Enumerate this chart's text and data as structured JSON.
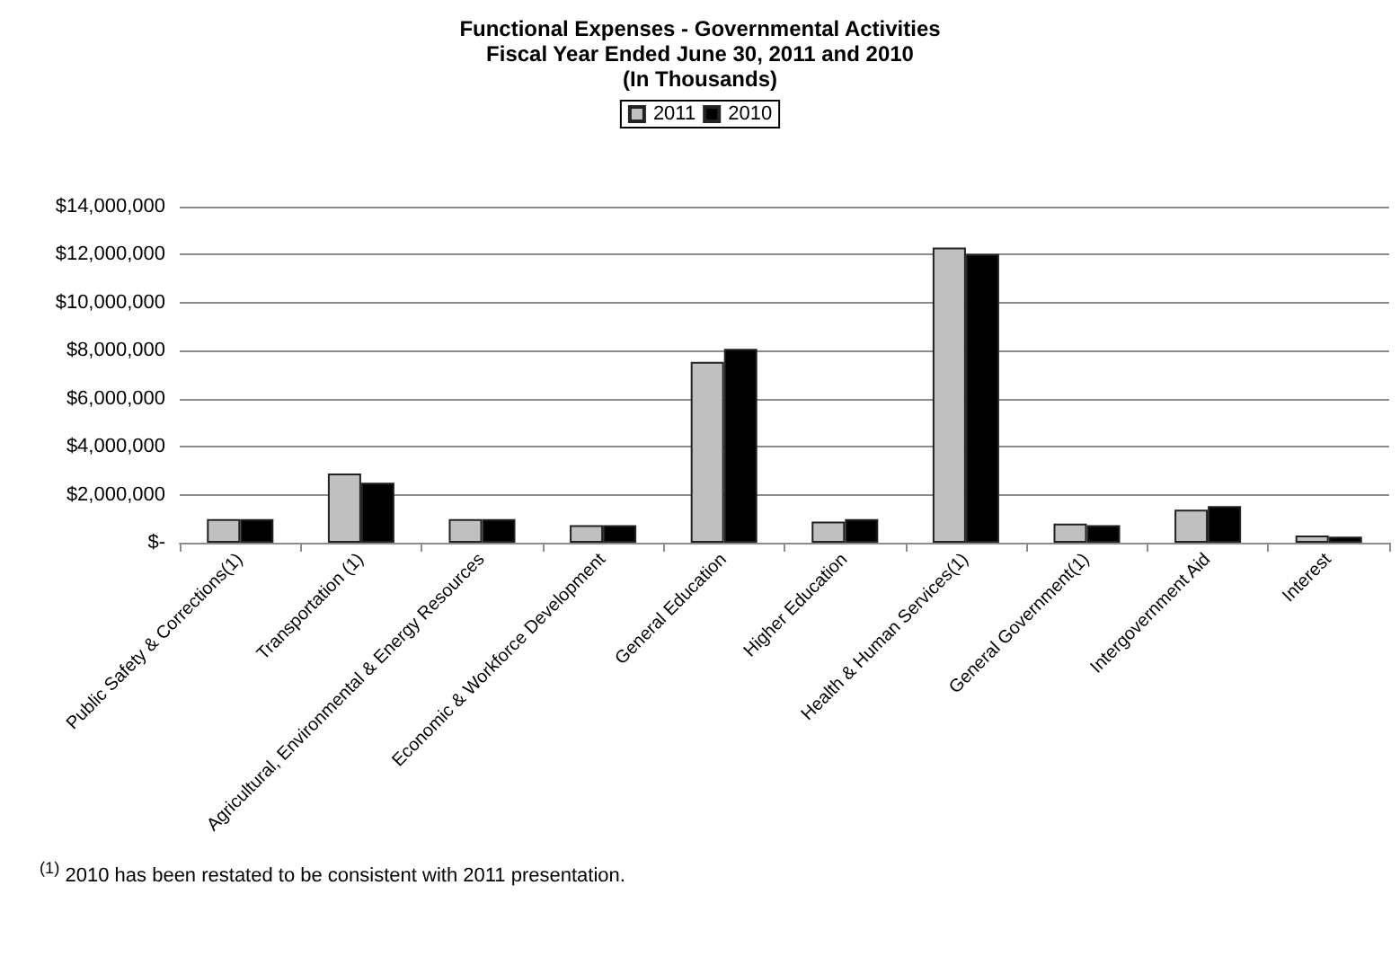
{
  "chart_data": {
    "type": "bar",
    "title": "Functional Expenses - Governmental Activities\nFiscal Year Ended June 30, 2011 and 2010\n(In Thousands)",
    "categories": [
      "Public Safety & Corrections(1)",
      "Transportation (1)",
      "Agricultural, Environmental & Energy Resources",
      "Economic & Workforce Development",
      "General Education",
      "Higher Education",
      "Health & Human Services(1)",
      "General Government(1)",
      "Intergovernment Aid",
      "Interest"
    ],
    "series": [
      {
        "name": "2011",
        "color": "#c0c0c0",
        "values": [
          980000,
          2880000,
          980000,
          730000,
          7530000,
          880000,
          12300000,
          800000,
          1380000,
          300000
        ]
      },
      {
        "name": "2010",
        "color": "#000000",
        "values": [
          980000,
          2500000,
          980000,
          730000,
          8080000,
          980000,
          12030000,
          730000,
          1530000,
          250000
        ]
      }
    ],
    "ylim": [
      0,
      14000000
    ],
    "yticks": [
      {
        "value": 0,
        "label": "$-"
      },
      {
        "value": 2000000,
        "label": "$2,000,000"
      },
      {
        "value": 4000000,
        "label": "$4,000,000"
      },
      {
        "value": 6000000,
        "label": "$6,000,000"
      },
      {
        "value": 8000000,
        "label": "$8,000,000"
      },
      {
        "value": 10000000,
        "label": "$10,000,000"
      },
      {
        "value": 12000000,
        "label": "$12,000,000"
      },
      {
        "value": 14000000,
        "label": "$14,000,000"
      }
    ],
    "grid": "y",
    "legend": "top",
    "annotations": [
      "$^{(1)}$ 2010 has been restated to be consistent with 2011 presentation."
    ]
  }
}
